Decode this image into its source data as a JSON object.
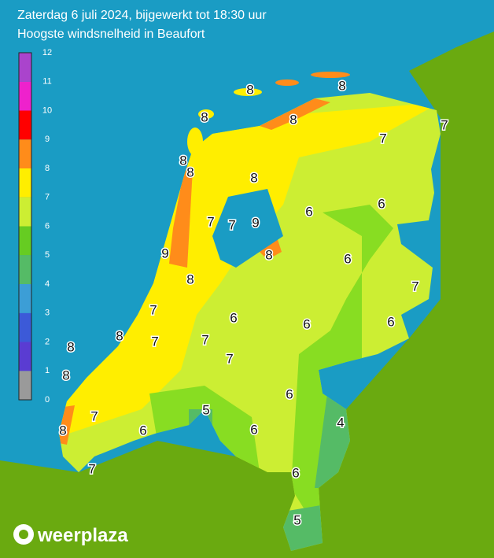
{
  "header": {
    "title": "Zaterdag 6 juli 2024, bijgewerkt tot 18:30 uur",
    "subtitle": "Hoogste windsnelheid in Beaufort"
  },
  "legend": {
    "ticks": [
      0,
      1,
      2,
      3,
      4,
      5,
      6,
      7,
      8,
      9,
      10,
      11,
      12
    ],
    "colors": [
      "#9a9a9a",
      "#5a3cd2",
      "#3c5ad8",
      "#3c9ed6",
      "#55bb66",
      "#66cc22",
      "#ccee33",
      "#ffee00",
      "#ff8c1a",
      "#ff0000",
      "#ee22cc",
      "#aa44cc"
    ]
  },
  "map": {
    "labels": [
      8,
      8,
      8,
      8,
      7,
      7,
      8,
      8,
      8,
      6,
      6,
      7,
      7,
      9,
      9,
      8,
      6,
      8,
      7,
      7,
      6,
      6,
      6,
      8,
      8,
      7,
      7,
      7,
      8,
      6,
      5,
      7,
      4,
      8,
      6,
      6,
      6,
      7,
      5
    ]
  },
  "footer": {
    "logo": "weerplaza"
  }
}
